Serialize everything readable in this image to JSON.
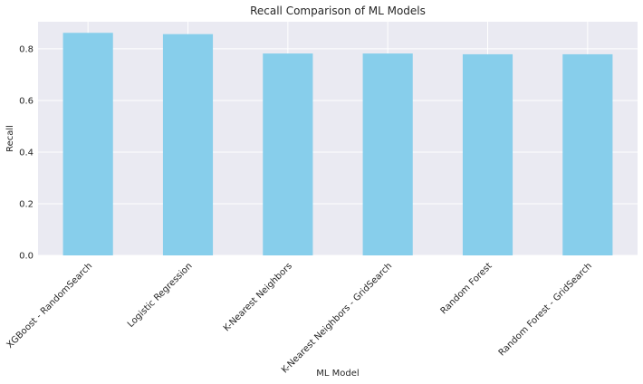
{
  "chart_data": {
    "type": "bar",
    "title": "Recall Comparison of ML Models",
    "xlabel": "ML Model",
    "ylabel": "Recall",
    "categories": [
      "XGBoost - RandomSearch",
      "Logistic Regression",
      "K-Nearest Neighbors",
      "K-Nearest Neighbors - GridSearch",
      "Random Forest",
      "Random Forest - GridSearch"
    ],
    "values": [
      0.862,
      0.857,
      0.782,
      0.782,
      0.779,
      0.779
    ],
    "ylim": [
      0,
      0.905
    ],
    "yticks": [
      "0.0",
      "0.2",
      "0.4",
      "0.6",
      "0.8"
    ],
    "grid": true,
    "legend": "none",
    "colors": {
      "bar": "#87ceeb",
      "plot_background": "#eaeaf2",
      "grid": "#ffffff",
      "text": "#262626"
    }
  }
}
